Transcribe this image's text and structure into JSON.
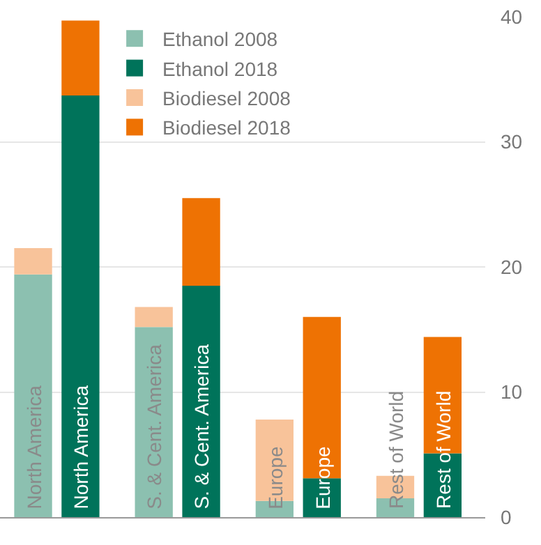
{
  "chart_data": {
    "type": "bar",
    "stacked": true,
    "categories": [
      "North America",
      "North America",
      "S. & Cent. America",
      "S. & Cent. America",
      "Europe",
      "Europe",
      "Rest of World",
      "Rest of World"
    ],
    "series": [
      {
        "name": "Ethanol 2008",
        "color": "#8cc0b0",
        "values": [
          19.4,
          null,
          15.2,
          null,
          1.3,
          null,
          1.5,
          null
        ]
      },
      {
        "name": "Ethanol 2018",
        "color": "#00735a",
        "values": [
          null,
          33.7,
          null,
          18.5,
          null,
          3.1,
          null,
          5.1
        ]
      },
      {
        "name": "Biodiesel 2008",
        "color": "#f8c39a",
        "values": [
          2.1,
          null,
          1.6,
          null,
          6.5,
          null,
          1.8,
          null
        ]
      },
      {
        "name": "Biodiesel 2018",
        "color": "#ee7203",
        "values": [
          null,
          6.0,
          null,
          7.0,
          null,
          12.9,
          null,
          9.3
        ]
      }
    ],
    "ylim": [
      0,
      40
    ],
    "yticks": [
      0,
      10,
      20,
      30,
      40
    ],
    "grid": "y",
    "legend": "top"
  }
}
